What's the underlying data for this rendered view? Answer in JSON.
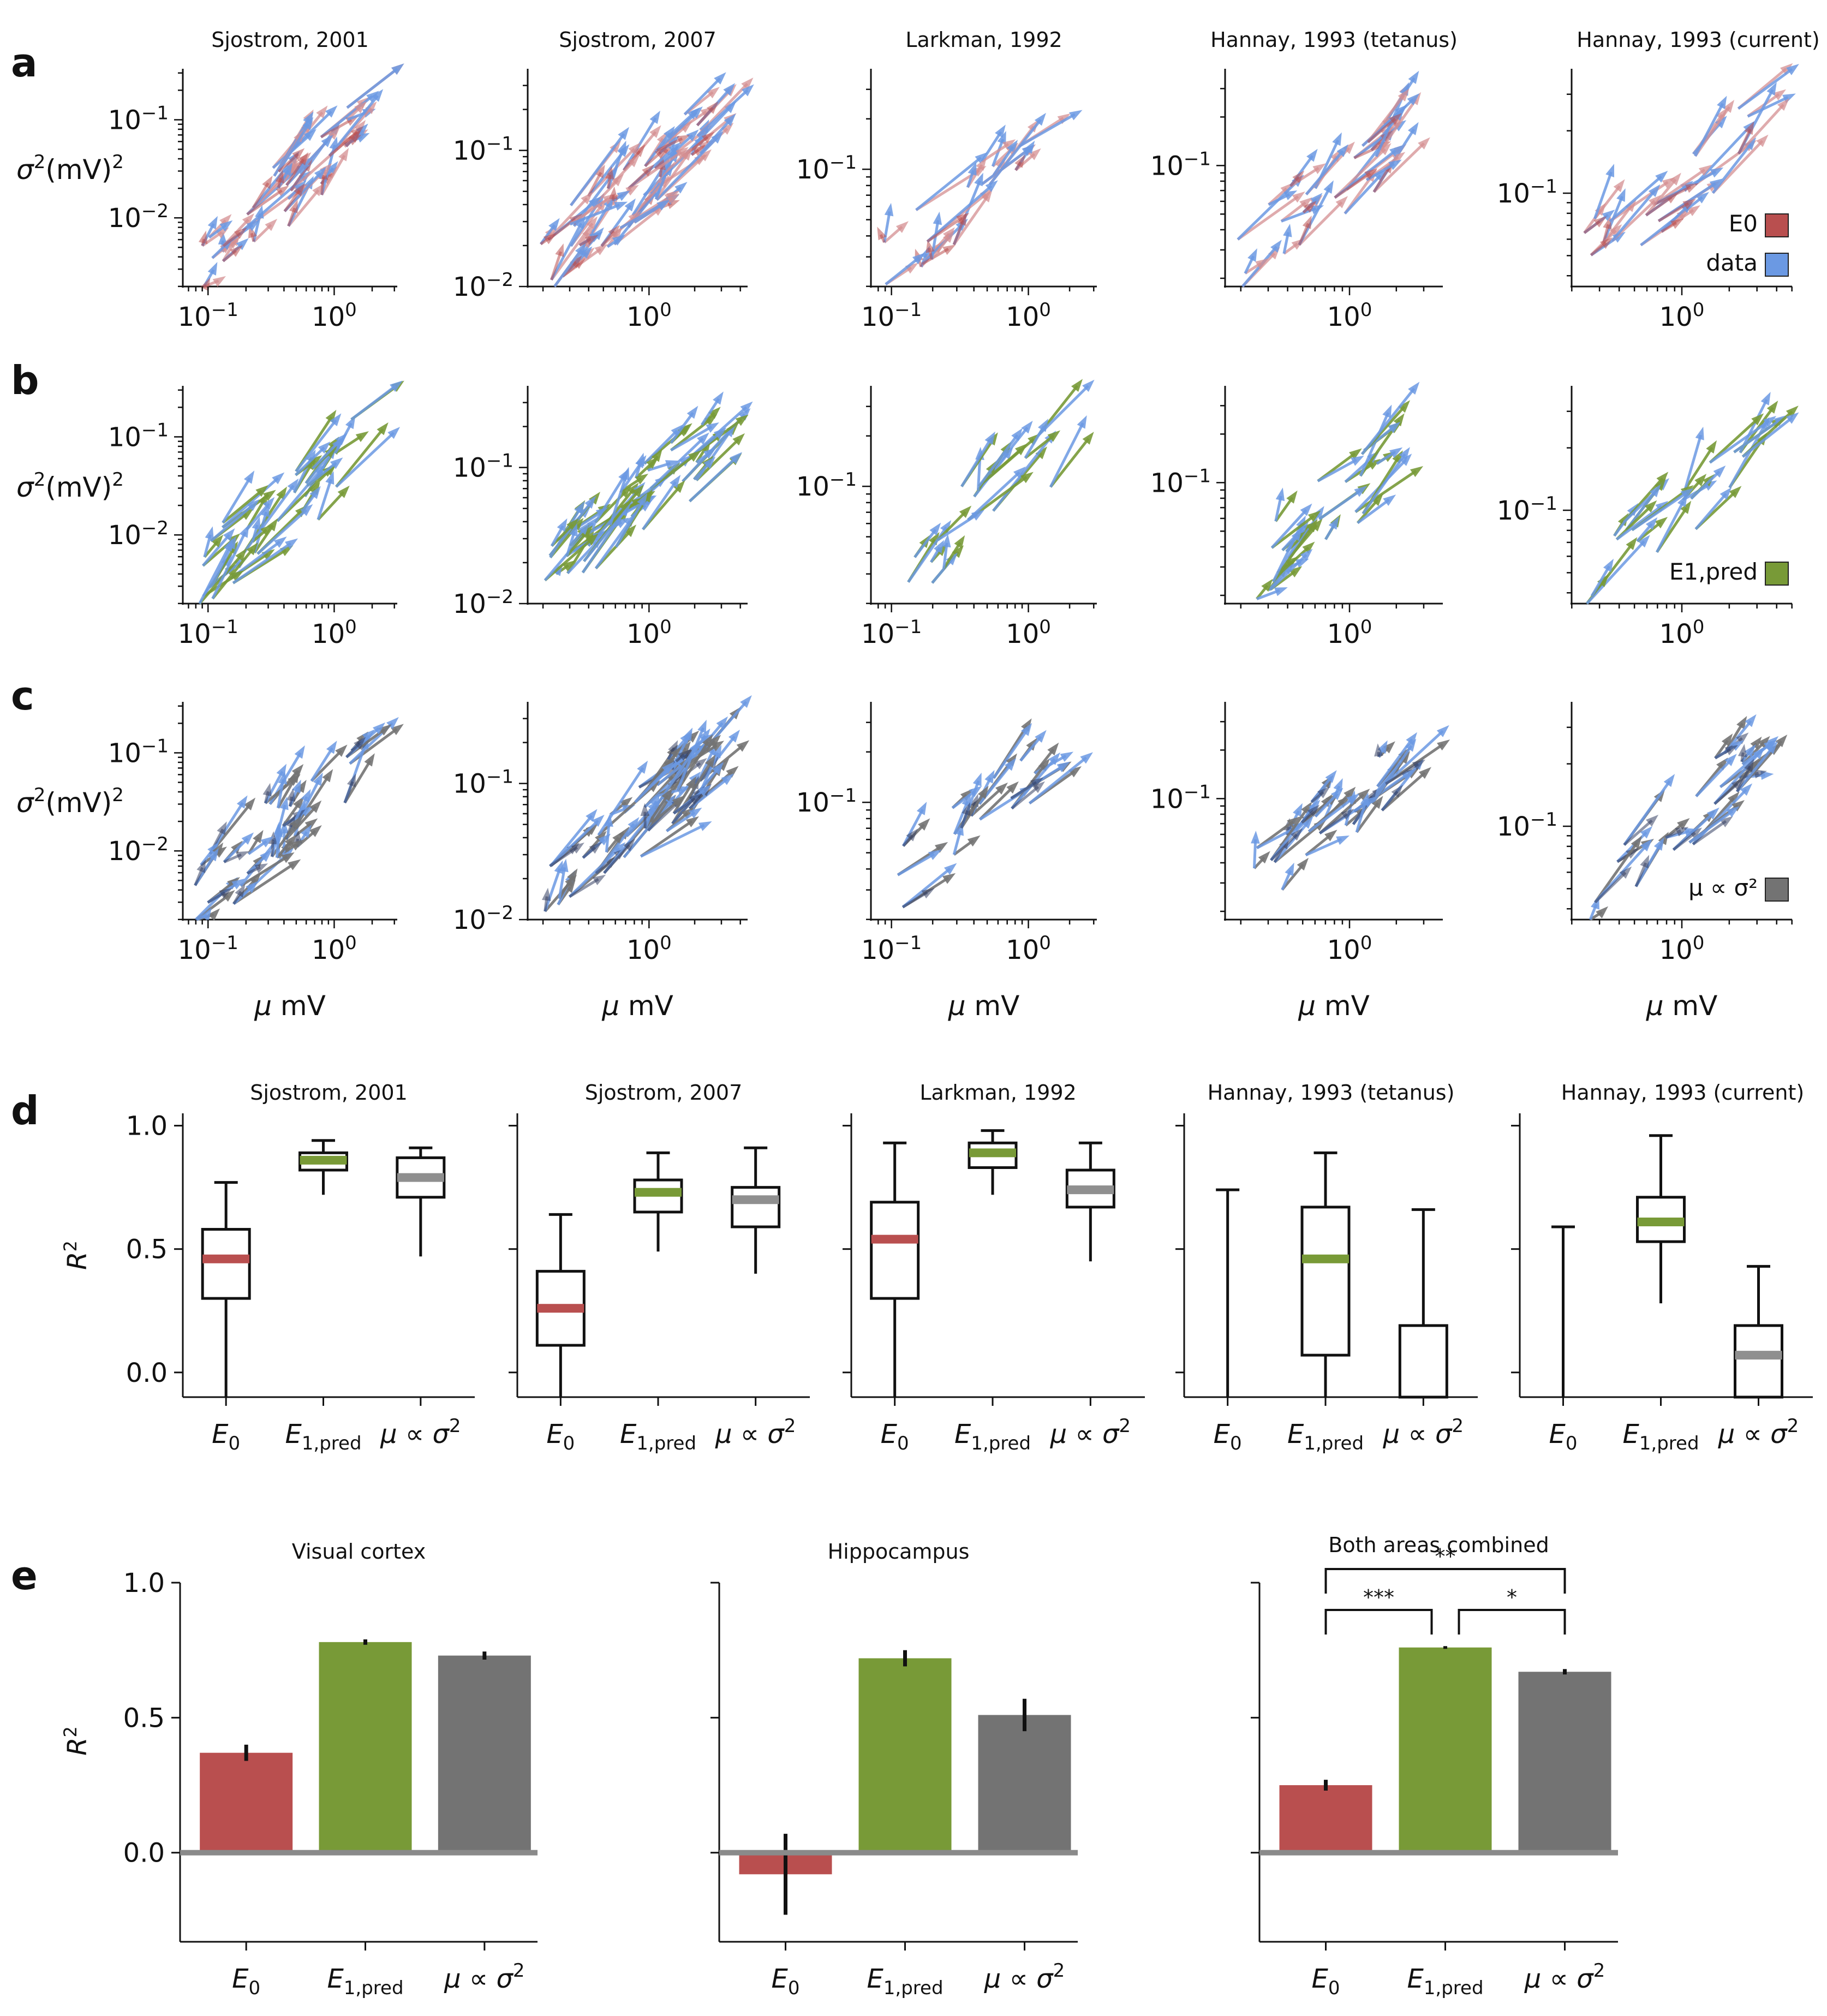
{
  "panel_labels": [
    "a",
    "b",
    "c",
    "d",
    "e"
  ],
  "colors": {
    "E0": "#b94f4f",
    "E0_light": "#d48f92",
    "data": "#6b99e3",
    "E1_pred": "#789a37",
    "mu_sigma": "#737373",
    "dark_overlay": "#343f63",
    "baseline": "#8a8a8a"
  },
  "chart_data": [
    {
      "type": "scatter",
      "description": "log-log arrow plots: σ² (mV)² versus μ mV, 3 model rows × 5 datasets",
      "columns": [
        "Sjostrom, 2001",
        "Sjostrom, 2007",
        "Larkman, 1992",
        "Hannay, 1993 (tetanus)",
        "Hannay, 1993 (current)"
      ],
      "xlabel": "μ mV",
      "ylabel": "σ²(mV)²",
      "x_ticks": [
        [
          "10^-1",
          "10^0"
        ],
        [
          "10^0"
        ],
        [
          "10^-1",
          "10^0"
        ],
        [
          "10^0"
        ],
        [
          "10^0"
        ]
      ],
      "xlim_log10": [
        [
          -1.2,
          0.5
        ],
        [
          -0.8,
          0.65
        ],
        [
          -1.15,
          0.5
        ],
        [
          -0.8,
          0.6
        ],
        [
          -0.7,
          0.7
        ]
      ],
      "ylim_log10": [
        [
          -2.7,
          -0.48
        ],
        [
          -2.0,
          -0.4
        ],
        [
          -1.7,
          -0.4
        ],
        [
          -1.75,
          -0.4
        ],
        [
          -1.45,
          -0.4
        ]
      ],
      "row_y_ticks": {
        "a": [
          [
            "10^-1",
            "10^-2"
          ],
          [
            "10^-1",
            "10^-2"
          ],
          [
            "10^-1"
          ],
          [
            "10^-1"
          ],
          [
            "10^-1"
          ]
        ],
        "b": [
          [
            "10^-1",
            "10^-2"
          ],
          [
            "10^-1",
            "10^-2"
          ],
          [
            "10^-1"
          ],
          [
            "10^-1"
          ],
          [
            "10^-1"
          ]
        ],
        "c": [
          [
            "10^-1",
            "10^-2"
          ],
          [
            "10^-1",
            "10^-2"
          ],
          [
            "10^-1"
          ],
          [
            "10^-1"
          ],
          [
            "10^-1"
          ]
        ]
      },
      "rows": [
        {
          "panel": "a",
          "series": [
            "E0",
            "data"
          ],
          "legend": [
            {
              "label": "E0",
              "key": "E0"
            },
            {
              "label": "data",
              "key": "data"
            }
          ]
        },
        {
          "panel": "b",
          "series": [
            "E1,pred",
            "data"
          ],
          "legend": [
            {
              "label": "E1,pred",
              "key": "E1_pred"
            }
          ]
        },
        {
          "panel": "c",
          "series": [
            "μ ∝ σ²",
            "data"
          ],
          "legend": [
            {
              "label": "μ ∝ σ²",
              "key": "mu_sigma"
            }
          ]
        }
      ],
      "arrows_per_panel": [
        30,
        40,
        16,
        22,
        18
      ]
    },
    {
      "type": "box",
      "panel": "d",
      "ylabel": "R²",
      "ylim": [
        -0.1,
        1.05
      ],
      "y_ticks": [
        0.0,
        0.5,
        1.0
      ],
      "categories": [
        "E0",
        "E1,pred",
        "μ ∝ σ²"
      ],
      "groups": [
        {
          "title": "Sjostrom, 2001",
          "boxes": [
            {
              "whislo": -0.1,
              "q1": 0.3,
              "med": 0.46,
              "q3": 0.58,
              "whishi": 0.77
            },
            {
              "whislo": 0.72,
              "q1": 0.82,
              "med": 0.86,
              "q3": 0.89,
              "whishi": 0.94
            },
            {
              "whislo": 0.47,
              "q1": 0.71,
              "med": 0.79,
              "q3": 0.87,
              "whishi": 0.91
            }
          ]
        },
        {
          "title": "Sjostrom, 2007",
          "boxes": [
            {
              "whislo": -0.1,
              "q1": 0.11,
              "med": 0.26,
              "q3": 0.41,
              "whishi": 0.64
            },
            {
              "whislo": 0.49,
              "q1": 0.65,
              "med": 0.73,
              "q3": 0.78,
              "whishi": 0.89
            },
            {
              "whislo": 0.4,
              "q1": 0.59,
              "med": 0.7,
              "q3": 0.75,
              "whishi": 0.91
            }
          ]
        },
        {
          "title": "Larkman, 1992",
          "boxes": [
            {
              "whislo": -0.1,
              "q1": 0.3,
              "med": 0.54,
              "q3": 0.69,
              "whishi": 0.93
            },
            {
              "whislo": 0.72,
              "q1": 0.83,
              "med": 0.89,
              "q3": 0.93,
              "whishi": 0.98
            },
            {
              "whislo": 0.45,
              "q1": 0.67,
              "med": 0.74,
              "q3": 0.82,
              "whishi": 0.93
            }
          ]
        },
        {
          "title": "Hannay, 1993 (tetanus)",
          "boxes": [
            {
              "whislo": -0.1,
              "q1": -0.1,
              "med": null,
              "q3": -0.1,
              "whishi": 0.74
            },
            {
              "whislo": -0.1,
              "q1": 0.07,
              "med": 0.46,
              "q3": 0.67,
              "whishi": 0.89
            },
            {
              "whislo": -0.1,
              "q1": -0.1,
              "med": null,
              "q3": 0.19,
              "whishi": 0.66
            }
          ]
        },
        {
          "title": "Hannay, 1993 (current)",
          "boxes": [
            {
              "whislo": -0.1,
              "q1": -0.1,
              "med": null,
              "q3": -0.1,
              "whishi": 0.59
            },
            {
              "whislo": 0.28,
              "q1": 0.53,
              "med": 0.61,
              "q3": 0.71,
              "whishi": 0.96
            },
            {
              "whislo": -0.1,
              "q1": -0.1,
              "med": 0.07,
              "q3": 0.19,
              "whishi": 0.43
            }
          ]
        }
      ]
    },
    {
      "type": "bar",
      "panel": "e",
      "ylabel": "R²",
      "ylim": [
        -0.33,
        1.0
      ],
      "y_ticks": [
        0.0,
        0.5,
        1.0
      ],
      "categories": [
        "E0",
        "E1,pred",
        "μ ∝ σ²"
      ],
      "groups": [
        {
          "title": "Visual cortex",
          "values": [
            0.37,
            0.78,
            0.73
          ],
          "errors": [
            0.03,
            0.01,
            0.015
          ]
        },
        {
          "title": "Hippocampus",
          "values": [
            -0.08,
            0.72,
            0.51
          ],
          "errors": [
            0.15,
            0.03,
            0.06
          ]
        },
        {
          "title": "Both areas combined",
          "values": [
            0.25,
            0.76,
            0.67
          ],
          "errors": [
            0.02,
            0.005,
            0.01
          ]
        }
      ],
      "significance": [
        {
          "from": 0,
          "to": 1,
          "label": "***"
        },
        {
          "from": 1,
          "to": 2,
          "label": "*"
        },
        {
          "from": 0,
          "to": 2,
          "label": "**"
        }
      ]
    }
  ]
}
